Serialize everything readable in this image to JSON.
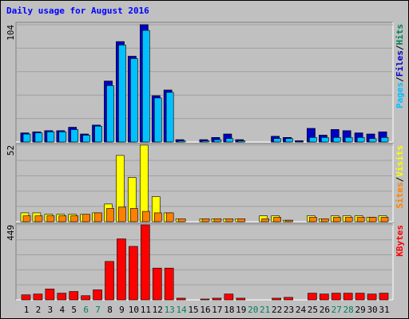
{
  "chart_data": [
    {
      "type": "bar",
      "title": "Daily usage for August 2016",
      "legend_separator": "/",
      "yticks": [
        104
      ],
      "ylim": [
        0,
        104
      ],
      "series": [
        {
          "name": "Hits",
          "color": "#00805c",
          "values": [
            8,
            9,
            10,
            10,
            13,
            7,
            15,
            54,
            89,
            76,
            104,
            41,
            46,
            2,
            0,
            2,
            4,
            7,
            2,
            0,
            0,
            5,
            4,
            1,
            12,
            6,
            11,
            10,
            8,
            7,
            9
          ]
        },
        {
          "name": "Files",
          "color": "#0000c8",
          "values": [
            8,
            9,
            10,
            10,
            13,
            7,
            15,
            54,
            89,
            76,
            104,
            41,
            46,
            2,
            0,
            2,
            4,
            7,
            2,
            0,
            0,
            5,
            4,
            1,
            12,
            6,
            11,
            10,
            8,
            7,
            9
          ]
        },
        {
          "name": "Pages",
          "color": "#00c0ff",
          "values": [
            7,
            8,
            9,
            9,
            11,
            6,
            14,
            50,
            86,
            74,
            99,
            39,
            44,
            1,
            0,
            1,
            2,
            3,
            1,
            0,
            0,
            3,
            3,
            0,
            4,
            4,
            4,
            4,
            4,
            3,
            4
          ]
        }
      ]
    },
    {
      "type": "bar",
      "yticks": [
        52
      ],
      "ylim": [
        0,
        52
      ],
      "series": [
        {
          "name": "Visits",
          "color": "#ffff00",
          "values": [
            6,
            6,
            5,
            5,
            5,
            5,
            6,
            12,
            45,
            30,
            52,
            17,
            6,
            2,
            0,
            2,
            2,
            2,
            2,
            0,
            4,
            4,
            1,
            0,
            4,
            2,
            4,
            4,
            4,
            3,
            4
          ]
        },
        {
          "name": "Sites",
          "color": "#ff8000",
          "values": [
            4,
            4,
            4,
            4,
            4,
            5,
            6,
            9,
            10,
            9,
            7,
            6,
            6,
            2,
            0,
            2,
            2,
            2,
            2,
            0,
            2,
            3,
            1,
            0,
            3,
            2,
            3,
            3,
            3,
            3,
            3
          ]
        }
      ]
    },
    {
      "type": "bar",
      "yticks": [
        449
      ],
      "ylim": [
        0,
        449
      ],
      "categories": [
        "1",
        "2",
        "3",
        "4",
        "5",
        "6",
        "7",
        "8",
        "9",
        "10",
        "11",
        "12",
        "13",
        "14",
        "15",
        "16",
        "17",
        "18",
        "19",
        "20",
        "21",
        "22",
        "23",
        "24",
        "25",
        "26",
        "27",
        "28",
        "29",
        "30",
        "31"
      ],
      "category_colors": [
        "#000",
        "#000",
        "#000",
        "#000",
        "#000",
        "#00805c",
        "#00805c",
        "#000",
        "#000",
        "#000",
        "#000",
        "#000",
        "#00805c",
        "#00805c",
        "#000",
        "#000",
        "#000",
        "#000",
        "#000",
        "#00805c",
        "#00805c",
        "#000",
        "#000",
        "#000",
        "#000",
        "#000",
        "#00805c",
        "#00805c",
        "#000",
        "#000",
        "#000"
      ],
      "series": [
        {
          "name": "KBytes",
          "color": "#ff0000",
          "values": [
            30,
            35,
            65,
            40,
            50,
            25,
            60,
            230,
            365,
            320,
            449,
            190,
            190,
            10,
            0,
            5,
            10,
            35,
            10,
            0,
            0,
            10,
            15,
            0,
            40,
            35,
            40,
            40,
            40,
            35,
            40
          ]
        }
      ]
    }
  ]
}
